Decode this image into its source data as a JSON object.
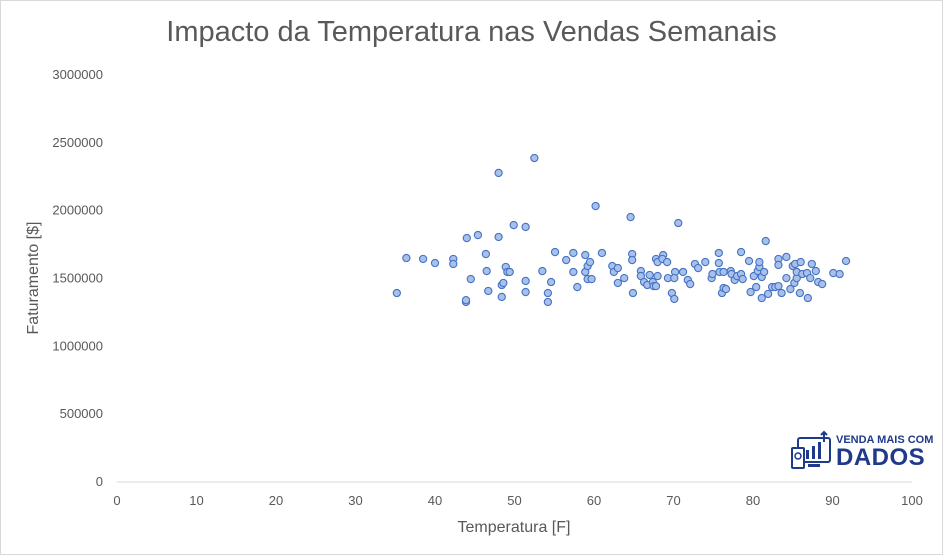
{
  "chart_data": {
    "type": "scatter",
    "title": "Impacto da Temperatura nas Vendas Semanais",
    "xlabel": "Temperatura [F]",
    "ylabel": "Faturamento [$]",
    "xlim": [
      0,
      100
    ],
    "ylim": [
      0,
      3000000
    ],
    "xticks": [
      0,
      10,
      20,
      30,
      40,
      50,
      60,
      70,
      80,
      90,
      100
    ],
    "yticks": [
      0,
      500000,
      1000000,
      1500000,
      2000000,
      2500000,
      3000000
    ],
    "grid": false,
    "marker_color": "#a9c1ea",
    "marker_edge_color": "#4472c4",
    "points": [
      [
        35.2,
        1393000
      ],
      [
        36.4,
        1651000
      ],
      [
        38.5,
        1644000
      ],
      [
        40.0,
        1614000
      ],
      [
        42.3,
        1644000
      ],
      [
        42.3,
        1607000
      ],
      [
        43.9,
        1327000
      ],
      [
        43.9,
        1340000
      ],
      [
        44.0,
        1798000
      ],
      [
        44.5,
        1496000
      ],
      [
        45.4,
        1820000
      ],
      [
        46.4,
        1680000
      ],
      [
        46.5,
        1555000
      ],
      [
        46.7,
        1408000
      ],
      [
        48.0,
        2278000
      ],
      [
        48.0,
        1806000
      ],
      [
        48.4,
        1452000
      ],
      [
        48.6,
        1467000
      ],
      [
        48.4,
        1364000
      ],
      [
        48.9,
        1585000
      ],
      [
        49.1,
        1548000
      ],
      [
        49.4,
        1548000
      ],
      [
        49.9,
        1894000
      ],
      [
        51.4,
        1880000
      ],
      [
        51.4,
        1482000
      ],
      [
        51.4,
        1400000
      ],
      [
        52.5,
        2388000
      ],
      [
        53.5,
        1555000
      ],
      [
        54.2,
        1393000
      ],
      [
        54.2,
        1327000
      ],
      [
        55.1,
        1695000
      ],
      [
        54.6,
        1474000
      ],
      [
        56.5,
        1636000
      ],
      [
        57.4,
        1688000
      ],
      [
        57.4,
        1548000
      ],
      [
        57.9,
        1437000
      ],
      [
        58.9,
        1673000
      ],
      [
        58.9,
        1548000
      ],
      [
        59.2,
        1592000
      ],
      [
        59.5,
        1621000
      ],
      [
        59.2,
        1496000
      ],
      [
        59.7,
        1496000
      ],
      [
        60.2,
        2034000
      ],
      [
        61.0,
        1688000
      ],
      [
        62.3,
        1592000
      ],
      [
        62.5,
        1548000
      ],
      [
        63.0,
        1577000
      ],
      [
        63.0,
        1467000
      ],
      [
        63.8,
        1503000
      ],
      [
        64.6,
        1953000
      ],
      [
        64.8,
        1680000
      ],
      [
        64.8,
        1636000
      ],
      [
        64.9,
        1393000
      ],
      [
        65.9,
        1555000
      ],
      [
        65.9,
        1518000
      ],
      [
        66.3,
        1474000
      ],
      [
        66.7,
        1452000
      ],
      [
        67.0,
        1526000
      ],
      [
        67.4,
        1474000
      ],
      [
        67.5,
        1444000
      ],
      [
        67.8,
        1444000
      ],
      [
        67.8,
        1644000
      ],
      [
        68.0,
        1621000
      ],
      [
        68.0,
        1518000
      ],
      [
        68.7,
        1673000
      ],
      [
        68.6,
        1644000
      ],
      [
        69.2,
        1621000
      ],
      [
        69.3,
        1503000
      ],
      [
        69.8,
        1393000
      ],
      [
        70.1,
        1349000
      ],
      [
        70.6,
        1909000
      ],
      [
        70.2,
        1548000
      ],
      [
        70.1,
        1503000
      ],
      [
        71.2,
        1548000
      ],
      [
        71.8,
        1489000
      ],
      [
        72.1,
        1459000
      ],
      [
        72.7,
        1607000
      ],
      [
        73.1,
        1577000
      ],
      [
        74.0,
        1621000
      ],
      [
        74.8,
        1503000
      ],
      [
        74.9,
        1533000
      ],
      [
        75.7,
        1688000
      ],
      [
        75.7,
        1614000
      ],
      [
        75.8,
        1548000
      ],
      [
        76.3,
        1548000
      ],
      [
        76.1,
        1393000
      ],
      [
        76.3,
        1430000
      ],
      [
        76.6,
        1422000
      ],
      [
        77.2,
        1555000
      ],
      [
        77.3,
        1533000
      ],
      [
        77.7,
        1489000
      ],
      [
        78.0,
        1518000
      ],
      [
        78.5,
        1695000
      ],
      [
        78.5,
        1533000
      ],
      [
        78.7,
        1496000
      ],
      [
        79.5,
        1629000
      ],
      [
        79.7,
        1400000
      ],
      [
        80.1,
        1518000
      ],
      [
        80.4,
        1437000
      ],
      [
        80.6,
        1555000
      ],
      [
        80.8,
        1585000
      ],
      [
        81.1,
        1511000
      ],
      [
        80.8,
        1621000
      ],
      [
        81.1,
        1356000
      ],
      [
        81.4,
        1548000
      ],
      [
        81.6,
        1776000
      ],
      [
        81.9,
        1386000
      ],
      [
        82.4,
        1437000
      ],
      [
        82.8,
        1437000
      ],
      [
        83.2,
        1444000
      ],
      [
        83.2,
        1644000
      ],
      [
        83.2,
        1600000
      ],
      [
        83.6,
        1393000
      ],
      [
        84.2,
        1659000
      ],
      [
        84.2,
        1503000
      ],
      [
        84.7,
        1422000
      ],
      [
        85.2,
        1467000
      ],
      [
        85.0,
        1592000
      ],
      [
        85.3,
        1607000
      ],
      [
        85.5,
        1503000
      ],
      [
        85.5,
        1548000
      ],
      [
        85.9,
        1393000
      ],
      [
        86.0,
        1621000
      ],
      [
        86.2,
        1533000
      ],
      [
        86.8,
        1540000
      ],
      [
        86.9,
        1356000
      ],
      [
        87.2,
        1503000
      ],
      [
        87.4,
        1607000
      ],
      [
        87.9,
        1555000
      ],
      [
        88.2,
        1474000
      ],
      [
        88.7,
        1459000
      ],
      [
        90.1,
        1540000
      ],
      [
        90.9,
        1533000
      ],
      [
        91.7,
        1629000
      ]
    ]
  },
  "logo": {
    "line1": "VENDA MAIS COM",
    "line2": "DADOS",
    "color": "#1f3a8a"
  }
}
